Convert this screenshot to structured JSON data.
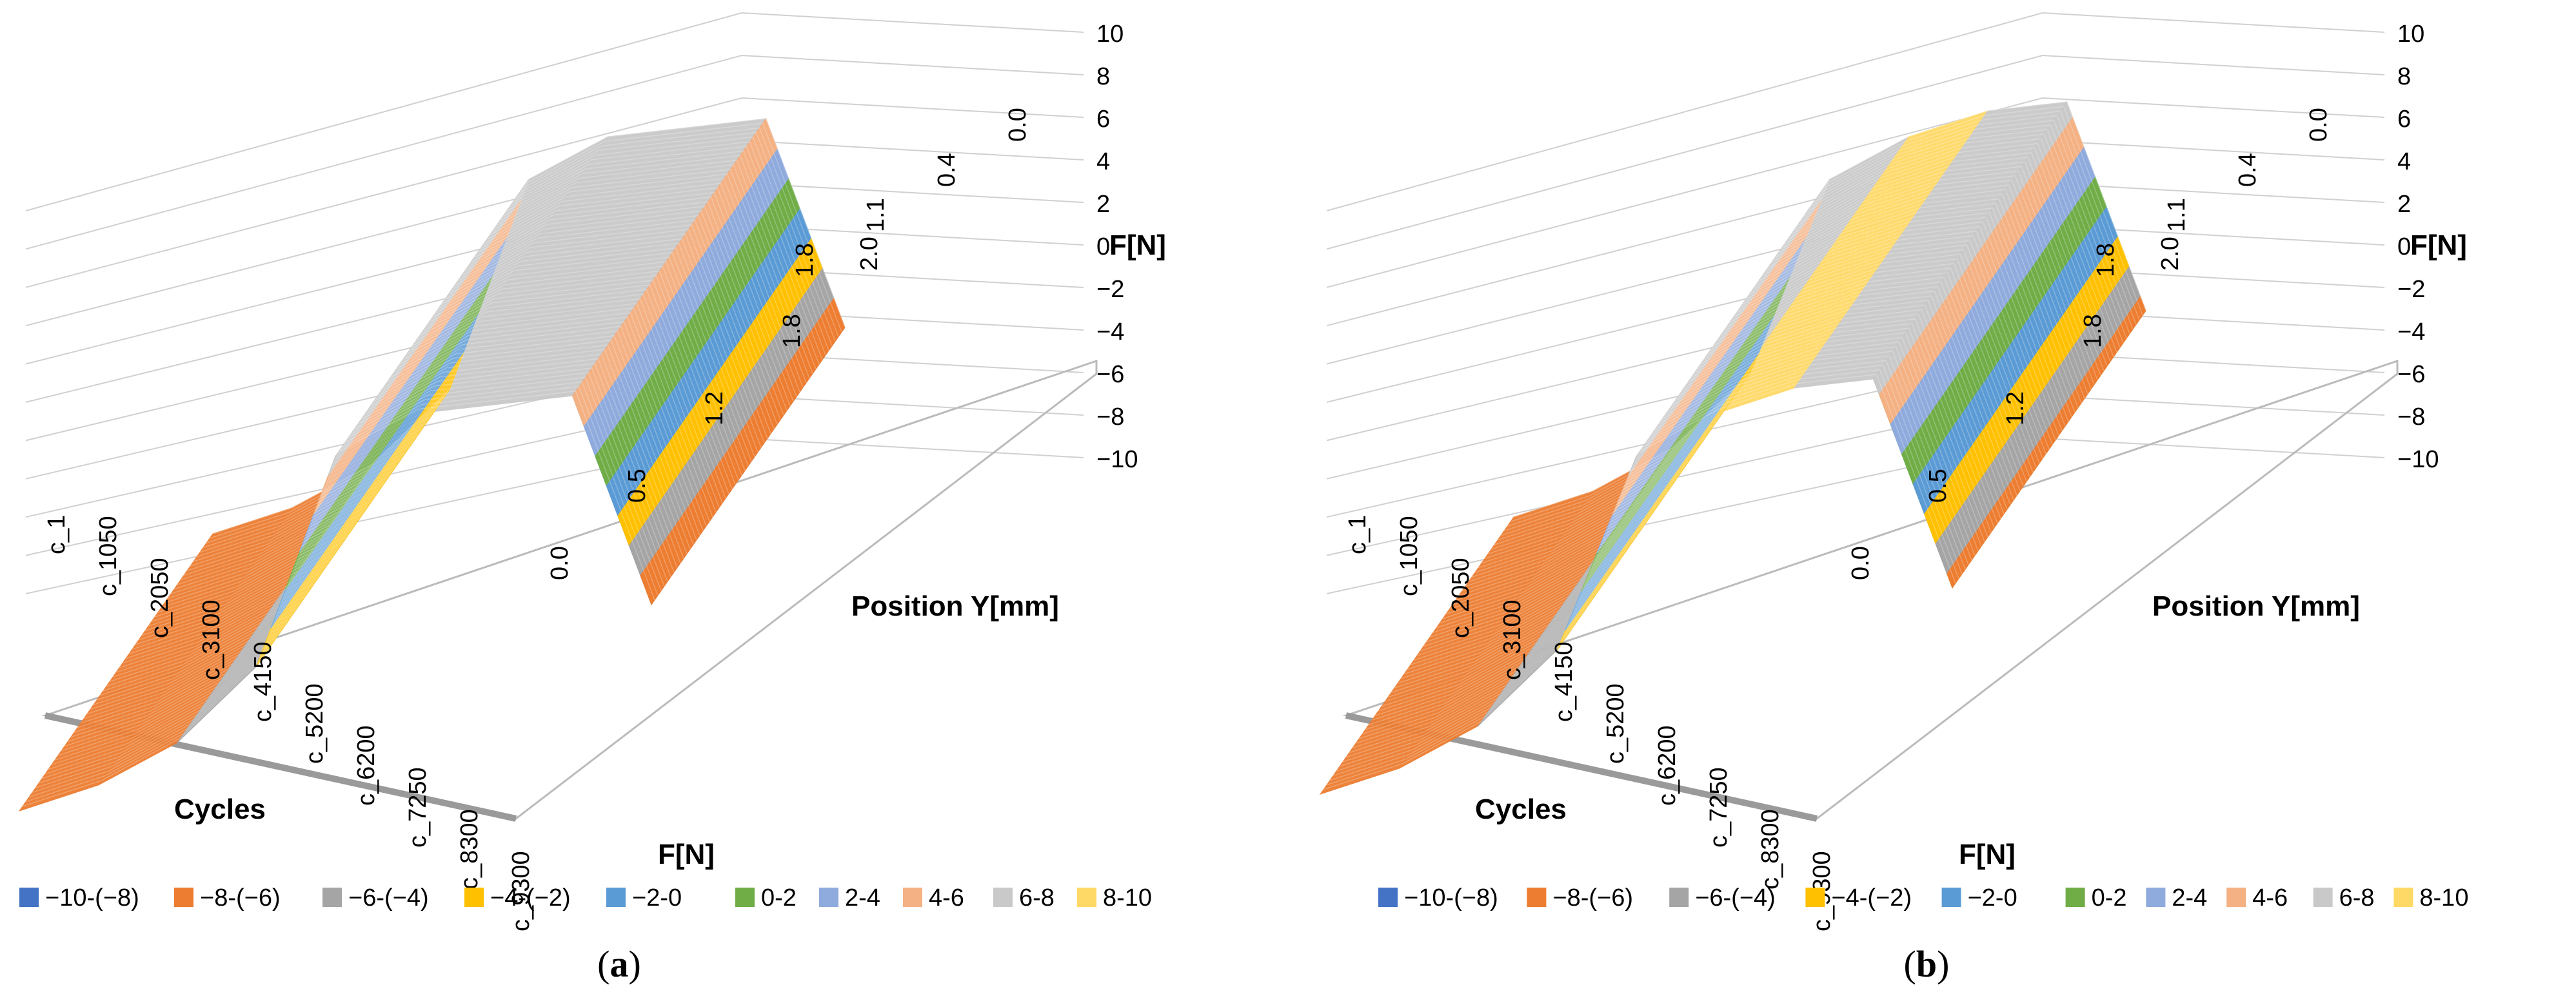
{
  "chart_data": [
    {
      "type": "surface-3d",
      "caption": "a",
      "zlabel": "F[N]",
      "ylabel": "Position Y[mm]",
      "xlabel": "Cycles",
      "bottom_label": "F[N]",
      "z_ticks": [
        "10",
        "8",
        "6",
        "4",
        "2",
        "0",
        "−2",
        "−4",
        "−6",
        "−8",
        "−10"
      ],
      "zlim": [
        -10,
        10
      ],
      "position_ticks": [
        "0.0",
        "0.5",
        "1.2",
        "1.8",
        "2.0",
        "1.8",
        "1.1",
        "0.4",
        "0.0"
      ],
      "cycle_ticks": [
        "c_1",
        "c_1050",
        "c_2050",
        "c_3100",
        "c_4150",
        "c_5200",
        "c_6200",
        "c_7250",
        "c_8300",
        "c_9300"
      ],
      "force_profile": [
        {
          "y": "0.0",
          "f": -8
        },
        {
          "y": "0.5",
          "f": -8
        },
        {
          "y": "1.2",
          "f": -7
        },
        {
          "y": "1.8",
          "f": -4
        },
        {
          "y": "2.0",
          "f": 7
        },
        {
          "y": "1.8",
          "f": 8
        },
        {
          "y": "1.1",
          "f": 7
        },
        {
          "y": "0.4",
          "f": 6
        },
        {
          "y": "0.0",
          "f": -8
        }
      ],
      "legend": [
        "−10-(−8)",
        "−8-(−6)",
        "−6-(−4)",
        "−4-(−2)",
        "−2-0",
        "0-2",
        "2-4",
        "4-6",
        "6-8",
        "8-10"
      ],
      "legend_colors": [
        "#4472c4",
        "#ed7d31",
        "#a5a5a5",
        "#ffc000",
        "#5b9bd5",
        "#70ad47",
        "#8faadc",
        "#f4b183",
        "#c9c9c9",
        "#ffd966"
      ]
    },
    {
      "type": "surface-3d",
      "caption": "b",
      "zlabel": "F[N]",
      "ylabel": "Position Y[mm]",
      "xlabel": "Cycles",
      "bottom_label": "F[N]",
      "z_ticks": [
        "10",
        "8",
        "6",
        "4",
        "2",
        "0",
        "−2",
        "−4",
        "−6",
        "−8",
        "−10"
      ],
      "zlim": [
        -10,
        10
      ],
      "position_ticks": [
        "0.0",
        "0.5",
        "1.2",
        "1.8",
        "2.0",
        "1.8",
        "1.1",
        "0.4",
        "0.0"
      ],
      "cycle_ticks": [
        "c_1",
        "c_1050",
        "c_2050",
        "c_3100",
        "c_4150",
        "c_5200",
        "c_6200",
        "c_7250",
        "c_8300",
        "c_9300"
      ],
      "force_profile": [
        {
          "y": "0.0",
          "f": -7
        },
        {
          "y": "0.5",
          "f": -7
        },
        {
          "y": "1.2",
          "f": -6
        },
        {
          "y": "1.8",
          "f": -3
        },
        {
          "y": "2.0",
          "f": 7
        },
        {
          "y": "1.8",
          "f": 8
        },
        {
          "y": "1.1",
          "f": 8
        },
        {
          "y": "0.4",
          "f": 7
        },
        {
          "y": "0.0",
          "f": -7
        }
      ],
      "legend": [
        "−10-(−8)",
        "−8-(−6)",
        "−6-(−4)",
        "−4-(−2)",
        "−2-0",
        "0-2",
        "2-4",
        "4-6",
        "6-8",
        "8-10"
      ],
      "legend_colors": [
        "#4472c4",
        "#ed7d31",
        "#a5a5a5",
        "#ffc000",
        "#5b9bd5",
        "#70ad47",
        "#8faadc",
        "#f4b183",
        "#c9c9c9",
        "#ffd966"
      ]
    }
  ]
}
